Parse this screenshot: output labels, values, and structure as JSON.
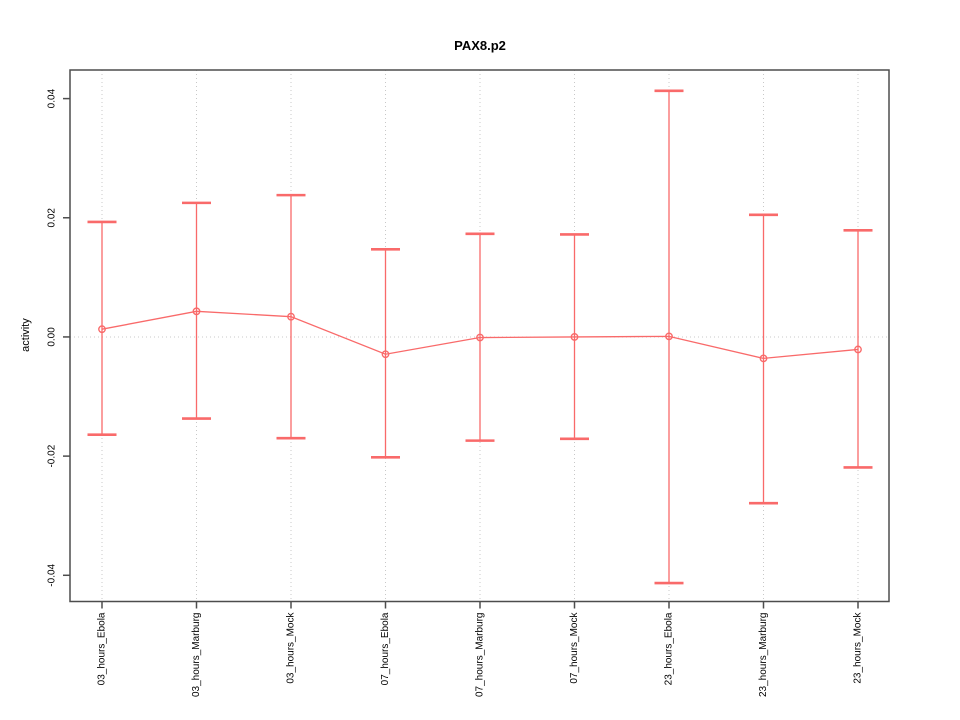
{
  "figure": {
    "title": "PAX8.p2",
    "ylabel": "activity"
  },
  "chart_data": {
    "type": "line",
    "subtype": "means-with-error-bars",
    "title": "PAX8.p2",
    "xlabel": "",
    "ylabel": "activity",
    "categories": [
      "03_hours_Ebola",
      "03_hours_Marburg",
      "03_hours_Mock",
      "07_hours_Ebola",
      "07_hours_Marburg",
      "07_hours_Mock",
      "23_hours_Ebola",
      "23_hours_Marburg",
      "23_hours_Mock"
    ],
    "series": [
      {
        "name": "mean_activity",
        "values": [
          0.0013,
          0.0043,
          0.0034,
          -0.0029,
          -0.0001,
          0.0,
          0.0001,
          -0.0036,
          -0.0021
        ]
      },
      {
        "name": "error_upper",
        "values": [
          0.0193,
          0.0225,
          0.0238,
          0.0147,
          0.0173,
          0.0172,
          0.0413,
          0.0205,
          0.0179
        ]
      },
      {
        "name": "error_lower",
        "values": [
          -0.0164,
          -0.0137,
          -0.017,
          -0.0202,
          -0.0174,
          -0.0171,
          -0.0413,
          -0.0279,
          -0.0219
        ]
      }
    ],
    "ylim": [
      -0.0444,
      0.0448
    ],
    "yticks": [
      -0.04,
      -0.02,
      0,
      0.02,
      0.04
    ],
    "ytick_labels": [
      "-0.04",
      "-0.02",
      "0.00",
      "0.02",
      "0.04"
    ],
    "grid": {
      "vertical_at_categories": true,
      "horizontal_at_zero": true,
      "style": "dotted"
    },
    "legend_position": "none",
    "colors": {
      "series": "#f96a6a",
      "grid": "#c8c8c8",
      "box": "#4d4d4d",
      "text": "#000000"
    }
  }
}
